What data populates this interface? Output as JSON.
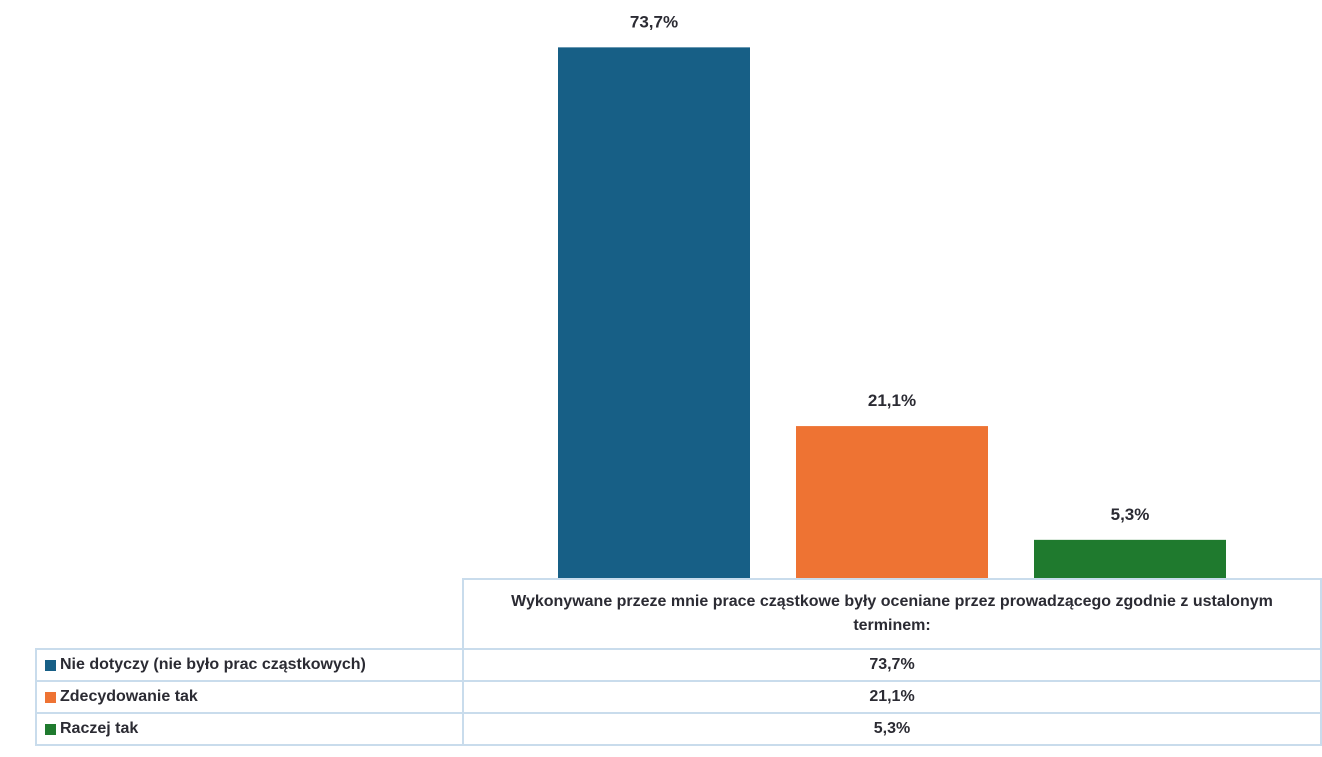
{
  "chart_data": {
    "type": "bar",
    "categories": [
      "Wykonywane przeze mnie prace cząstkowe były oceniane przez prowadzącego zgodnie z ustalonym terminem:"
    ],
    "series": [
      {
        "name": "Nie dotyczy (nie było prac cząstkowych)",
        "color": "#175f86",
        "values": [
          73.7
        ],
        "value_labels": [
          "73,7%"
        ]
      },
      {
        "name": "Zdecydowanie tak",
        "color": "#ee7333",
        "values": [
          21.1
        ],
        "value_labels": [
          "21,1%"
        ]
      },
      {
        "name": "Raczej tak",
        "color": "#1f7a2e",
        "values": [
          5.3
        ],
        "value_labels": [
          "5,3%"
        ]
      }
    ],
    "ylim": [
      0,
      80
    ]
  }
}
